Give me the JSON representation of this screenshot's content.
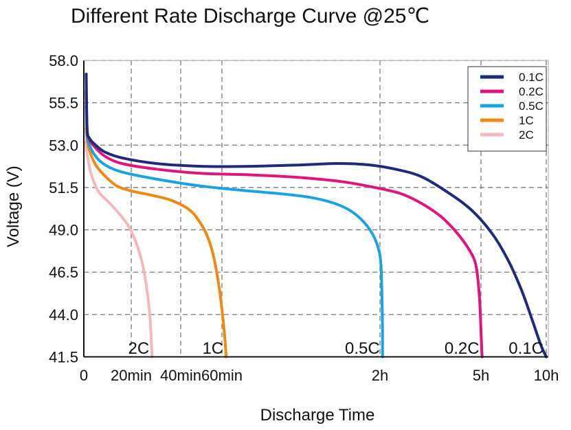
{
  "chart_data": {
    "type": "line",
    "title": "Different Rate Discharge Curve @25℃",
    "xlabel": "Discharge Time",
    "ylabel": "Voltage (V)",
    "ylim": [
      41.5,
      58.0
    ],
    "y_ticks": [
      "58.0",
      "55.5",
      "53.0",
      "51.5",
      "49.0",
      "46.5",
      "44.0",
      "41.5"
    ],
    "x_ticks": [
      {
        "label": "0",
        "t": 0
      },
      {
        "label": "20min",
        "t": 1
      },
      {
        "label": "40min",
        "t": 2
      },
      {
        "label": "60min",
        "t": 3
      },
      {
        "label": "2h",
        "t": 6
      },
      {
        "label": "5h",
        "t": 8
      },
      {
        "label": "10h",
        "t": 9.2
      }
    ],
    "grid_x": [
      1,
      2,
      3,
      6,
      8,
      9.2
    ],
    "grid": true,
    "legend_position": "top-right",
    "series": [
      {
        "name": "0.1C",
        "color": "#1f2a7a",
        "end_label": "0.1C",
        "points": [
          [
            0.05,
            57.2
          ],
          [
            0.07,
            54.0
          ],
          [
            0.12,
            53.4
          ],
          [
            0.25,
            53.0
          ],
          [
            0.45,
            52.75
          ],
          [
            0.8,
            52.55
          ],
          [
            1.5,
            52.35
          ],
          [
            2.5,
            52.25
          ],
          [
            3.5,
            52.25
          ],
          [
            4.5,
            52.3
          ],
          [
            5.2,
            52.35
          ],
          [
            5.8,
            52.3
          ],
          [
            6.3,
            52.15
          ],
          [
            6.8,
            51.9
          ],
          [
            7.3,
            51.3
          ],
          [
            7.8,
            50.2
          ],
          [
            8.2,
            48.8
          ],
          [
            8.5,
            47.2
          ],
          [
            8.75,
            45.4
          ],
          [
            8.95,
            43.6
          ],
          [
            9.1,
            42.2
          ],
          [
            9.2,
            41.5
          ]
        ]
      },
      {
        "name": "0.2C",
        "color": "#e0147c",
        "end_label": "0.2C",
        "points": [
          [
            0.05,
            56.2
          ],
          [
            0.07,
            53.9
          ],
          [
            0.12,
            53.3
          ],
          [
            0.25,
            52.9
          ],
          [
            0.45,
            52.6
          ],
          [
            0.8,
            52.35
          ],
          [
            1.5,
            52.15
          ],
          [
            2.5,
            52.0
          ],
          [
            3.5,
            51.95
          ],
          [
            4.5,
            51.85
          ],
          [
            5.3,
            51.7
          ],
          [
            5.9,
            51.5
          ],
          [
            6.4,
            51.15
          ],
          [
            6.8,
            50.6
          ],
          [
            7.2,
            49.8
          ],
          [
            7.5,
            48.9
          ],
          [
            7.75,
            47.9
          ],
          [
            7.9,
            46.9
          ],
          [
            7.97,
            45.0
          ],
          [
            8.0,
            43.0
          ],
          [
            8.02,
            41.5
          ]
        ]
      },
      {
        "name": "0.5C",
        "color": "#1aa3e0",
        "end_label": "0.5C",
        "points": [
          [
            0.05,
            55.3
          ],
          [
            0.07,
            53.6
          ],
          [
            0.12,
            53.0
          ],
          [
            0.25,
            52.6
          ],
          [
            0.45,
            52.3
          ],
          [
            0.8,
            52.05
          ],
          [
            1.5,
            51.8
          ],
          [
            2.5,
            51.55
          ],
          [
            3.5,
            51.3
          ],
          [
            4.2,
            51.1
          ],
          [
            4.7,
            50.9
          ],
          [
            5.1,
            50.6
          ],
          [
            5.4,
            50.2
          ],
          [
            5.65,
            49.6
          ],
          [
            5.85,
            48.8
          ],
          [
            5.97,
            47.9
          ],
          [
            6.02,
            46.9
          ],
          [
            6.04,
            45.0
          ],
          [
            6.05,
            43.0
          ],
          [
            6.05,
            41.5
          ]
        ]
      },
      {
        "name": "1C",
        "color": "#ee8a13",
        "end_label": "1C",
        "points": [
          [
            0.05,
            54.0
          ],
          [
            0.07,
            53.3
          ],
          [
            0.12,
            52.8
          ],
          [
            0.25,
            52.3
          ],
          [
            0.45,
            51.9
          ],
          [
            0.7,
            51.55
          ],
          [
            1.0,
            51.3
          ],
          [
            1.4,
            51.05
          ],
          [
            1.8,
            50.75
          ],
          [
            2.2,
            50.2
          ],
          [
            2.45,
            49.5
          ],
          [
            2.65,
            48.6
          ],
          [
            2.8,
            47.4
          ],
          [
            2.92,
            45.8
          ],
          [
            3.0,
            44.3
          ],
          [
            3.05,
            42.8
          ],
          [
            3.08,
            41.5
          ]
        ]
      },
      {
        "name": "2C",
        "color": "#f3b8bd",
        "end_label": "2C",
        "points": [
          [
            0.03,
            53.2
          ],
          [
            0.08,
            52.6
          ],
          [
            0.15,
            52.0
          ],
          [
            0.3,
            51.3
          ],
          [
            0.5,
            50.7
          ],
          [
            0.7,
            50.1
          ],
          [
            0.9,
            49.4
          ],
          [
            1.05,
            48.6
          ],
          [
            1.2,
            47.3
          ],
          [
            1.3,
            45.8
          ],
          [
            1.37,
            44.2
          ],
          [
            1.4,
            42.8
          ],
          [
            1.42,
            41.5
          ]
        ]
      }
    ]
  }
}
